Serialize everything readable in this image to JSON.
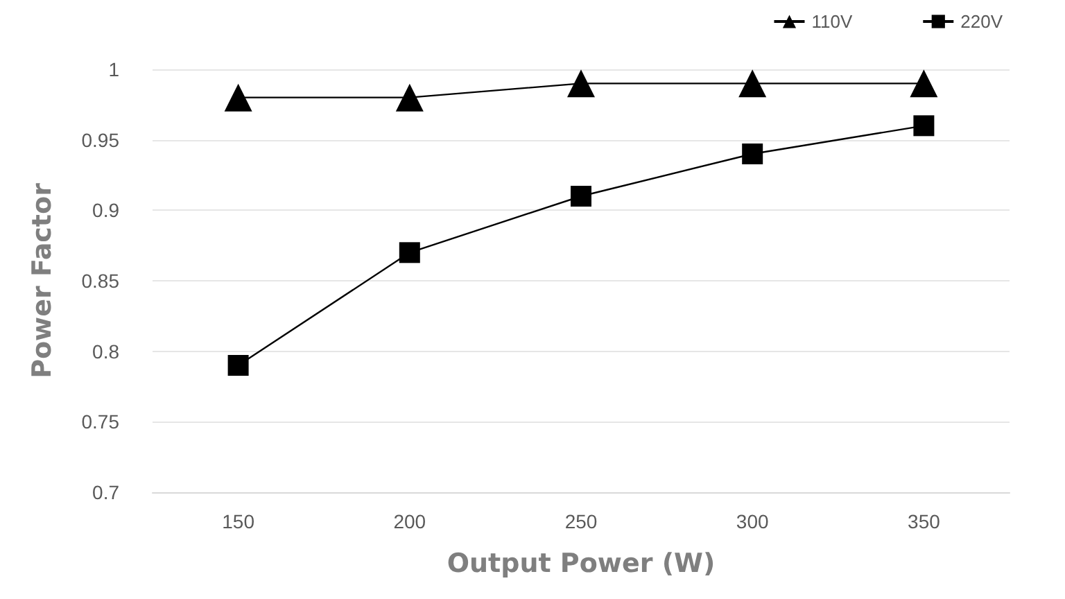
{
  "chart_data": {
    "type": "line",
    "xlabel": "Output Power (W)",
    "ylabel": "Power Factor",
    "categories": [
      "150",
      "200",
      "250",
      "300",
      "350"
    ],
    "series": [
      {
        "name": "110V",
        "color": "#000000",
        "marker": "triangle",
        "values": [
          0.98,
          0.98,
          0.99,
          0.99,
          0.99
        ]
      },
      {
        "name": "220V",
        "color": "#000000",
        "marker": "square",
        "values": [
          0.79,
          0.87,
          0.91,
          0.94,
          0.96
        ]
      }
    ],
    "ylim": [
      0.7,
      1
    ],
    "yticks": [
      0.7,
      0.75,
      0.8,
      0.85,
      0.9,
      0.95,
      1
    ],
    "grid": "y",
    "legend": "top right",
    "line_style": "solid"
  }
}
